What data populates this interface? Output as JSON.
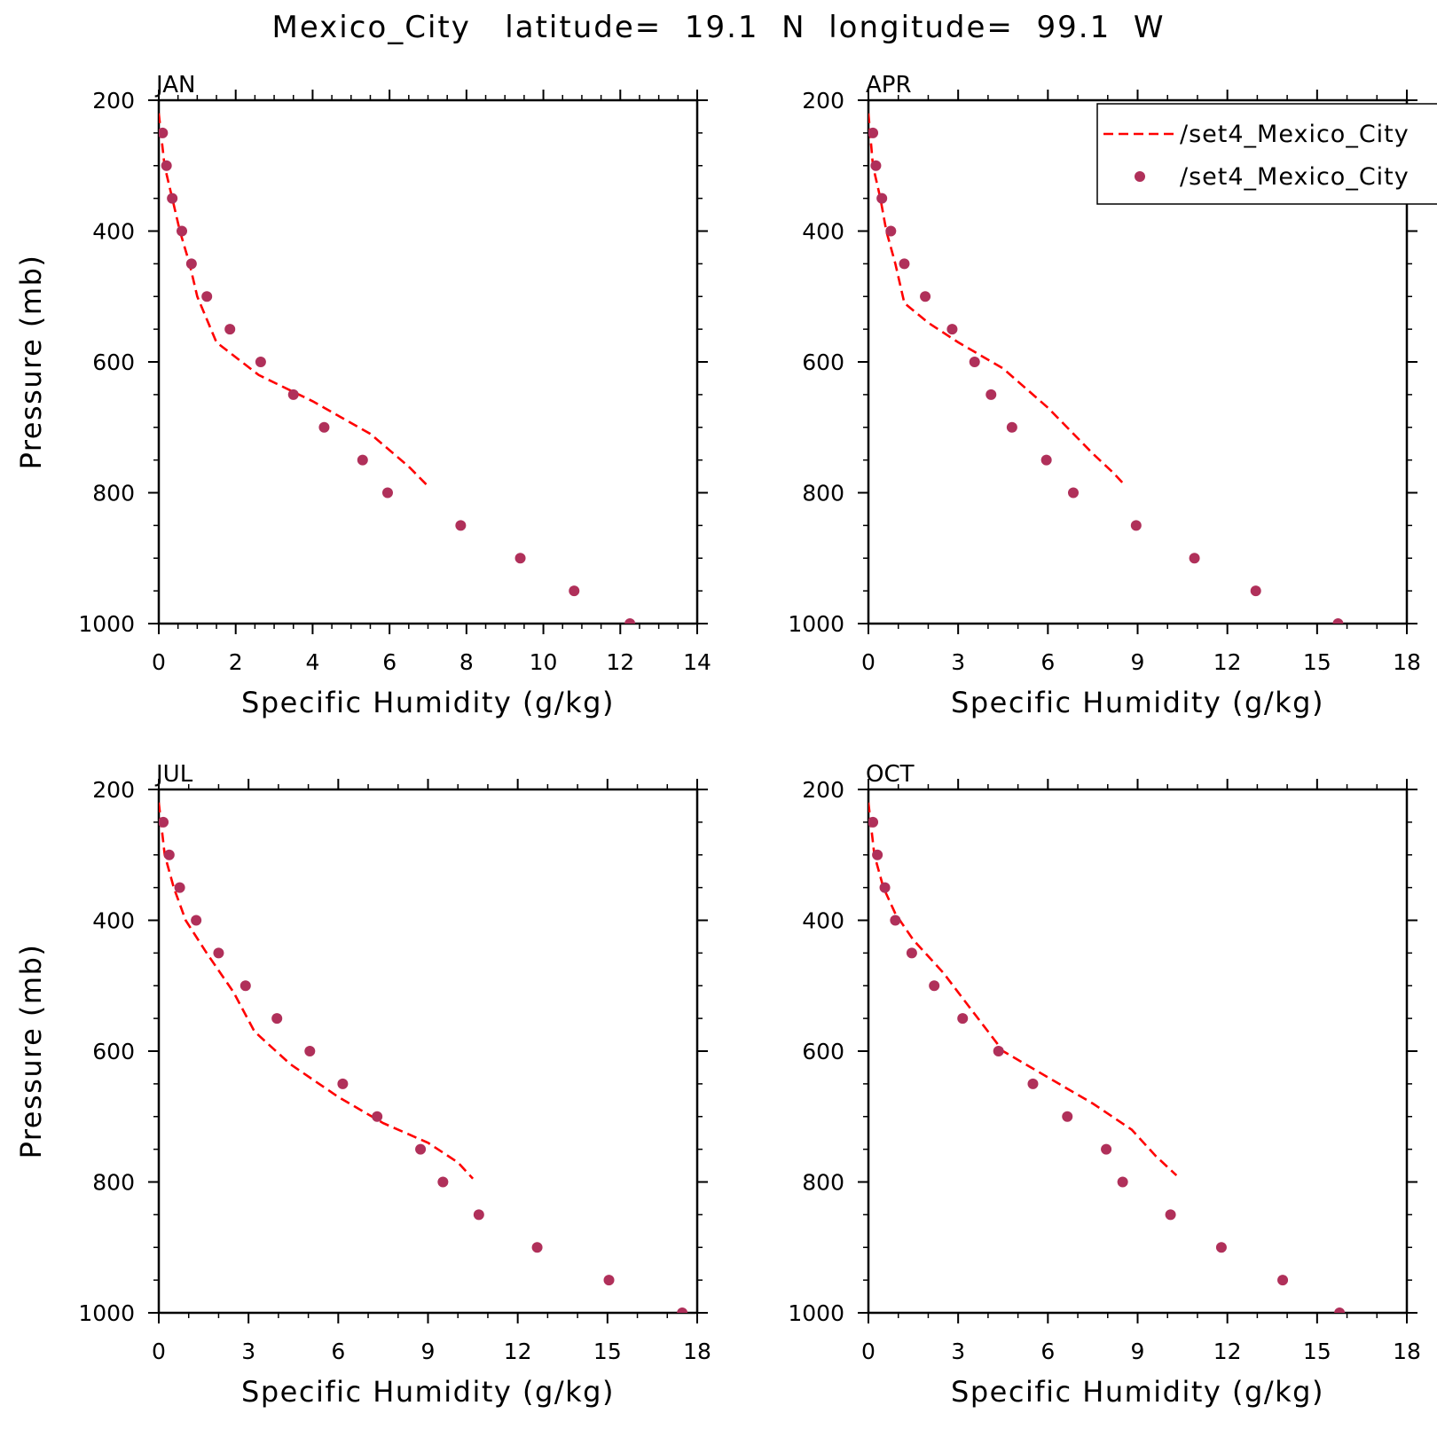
{
  "title": "Mexico_City   latitude=  19.1  N  longitude=  99.1  W",
  "colors": {
    "model": "#ff0000",
    "obs": "#b0305a",
    "axes": "#000000"
  },
  "legend": {
    "entries": [
      {
        "label": "/set4_Mexico_City",
        "style": "dashed-line"
      },
      {
        "label": "/set4_Mexico_City",
        "style": "marker"
      }
    ]
  },
  "chart_data": [
    {
      "type": "line",
      "panel_label": "JAN",
      "xlabel": "Specific Humidity (g/kg)",
      "ylabel": "Pressure (mb)",
      "xlim": [
        0,
        14
      ],
      "xticks": [
        0,
        2,
        4,
        6,
        8,
        10,
        12,
        14
      ],
      "ylim": [
        200,
        1000
      ],
      "yticks": [
        200,
        400,
        600,
        800,
        1000
      ],
      "y_inverted": true,
      "series": [
        {
          "style": "dashed-line",
          "x": [
            0.0,
            0.15,
            0.35,
            0.55,
            0.8,
            1.0,
            1.5,
            2.6,
            4.0,
            5.5,
            6.5,
            7.0
          ],
          "y": [
            220,
            300,
            350,
            400,
            450,
            500,
            570,
            620,
            660,
            710,
            760,
            790
          ]
        },
        {
          "style": "marker",
          "x": [
            0.1,
            0.2,
            0.35,
            0.6,
            0.85,
            1.25,
            1.85,
            2.65,
            3.5,
            4.3,
            5.3,
            5.95,
            7.85,
            9.4,
            10.8,
            12.25
          ],
          "y": [
            250,
            300,
            350,
            400,
            450,
            500,
            550,
            600,
            650,
            700,
            750,
            800,
            850,
            900,
            950,
            1000
          ]
        }
      ]
    },
    {
      "type": "line",
      "panel_label": "APR",
      "xlabel": "Specific Humidity (g/kg)",
      "ylabel": "",
      "xlim": [
        0,
        18
      ],
      "xticks": [
        0,
        3,
        6,
        9,
        12,
        15,
        18
      ],
      "ylim": [
        200,
        1000
      ],
      "yticks": [
        200,
        400,
        600,
        800,
        1000
      ],
      "y_inverted": true,
      "series": [
        {
          "style": "dashed-line",
          "x": [
            0.0,
            0.15,
            0.4,
            0.6,
            0.9,
            1.2,
            2.0,
            3.0,
            4.5,
            6.0,
            7.5,
            8.2,
            8.6
          ],
          "y": [
            220,
            300,
            350,
            400,
            450,
            510,
            540,
            570,
            610,
            670,
            740,
            770,
            790
          ]
        },
        {
          "style": "marker",
          "x": [
            0.15,
            0.25,
            0.45,
            0.75,
            1.2,
            1.9,
            2.8,
            3.55,
            4.1,
            4.8,
            5.95,
            6.85,
            8.95,
            10.9,
            12.95,
            15.7
          ],
          "y": [
            250,
            300,
            350,
            400,
            450,
            500,
            550,
            600,
            650,
            700,
            750,
            800,
            850,
            900,
            950,
            1000
          ]
        }
      ]
    },
    {
      "type": "line",
      "panel_label": "JUL",
      "xlabel": "Specific Humidity (g/kg)",
      "ylabel": "Pressure (mb)",
      "xlim": [
        0,
        18
      ],
      "xticks": [
        0,
        3,
        6,
        9,
        12,
        15,
        18
      ],
      "ylim": [
        200,
        1000
      ],
      "yticks": [
        200,
        400,
        600,
        800,
        1000
      ],
      "y_inverted": true,
      "series": [
        {
          "style": "dashed-line",
          "x": [
            0.0,
            0.2,
            0.5,
            0.9,
            1.6,
            2.5,
            3.2,
            4.4,
            6.0,
            7.5,
            9.0,
            10.0,
            10.5
          ],
          "y": [
            220,
            300,
            350,
            400,
            450,
            510,
            570,
            620,
            670,
            710,
            740,
            770,
            795
          ]
        },
        {
          "style": "marker",
          "x": [
            0.15,
            0.35,
            0.7,
            1.25,
            2.0,
            2.9,
            3.95,
            5.05,
            6.15,
            7.3,
            8.75,
            9.5,
            10.7,
            12.65,
            15.05,
            17.5
          ],
          "y": [
            250,
            300,
            350,
            400,
            450,
            500,
            550,
            600,
            650,
            700,
            750,
            800,
            850,
            900,
            950,
            1000
          ]
        }
      ]
    },
    {
      "type": "line",
      "panel_label": "OCT",
      "xlabel": "Specific Humidity (g/kg)",
      "ylabel": "",
      "xlim": [
        0,
        18
      ],
      "xticks": [
        0,
        3,
        6,
        9,
        12,
        15,
        18
      ],
      "ylim": [
        200,
        1000
      ],
      "yticks": [
        200,
        400,
        600,
        800,
        1000
      ],
      "y_inverted": true,
      "series": [
        {
          "style": "dashed-line",
          "x": [
            0.0,
            0.2,
            0.5,
            0.9,
            1.5,
            2.5,
            3.5,
            4.5,
            6.0,
            7.5,
            8.8,
            9.6,
            10.3
          ],
          "y": [
            220,
            300,
            350,
            390,
            430,
            480,
            540,
            600,
            640,
            680,
            720,
            760,
            790
          ]
        },
        {
          "style": "marker",
          "x": [
            0.15,
            0.3,
            0.55,
            0.9,
            1.45,
            2.2,
            3.15,
            4.35,
            5.5,
            6.65,
            7.95,
            8.5,
            10.1,
            11.8,
            13.85,
            15.75
          ],
          "y": [
            250,
            300,
            350,
            400,
            450,
            500,
            550,
            600,
            650,
            700,
            750,
            800,
            850,
            900,
            950,
            1000
          ]
        }
      ]
    }
  ]
}
